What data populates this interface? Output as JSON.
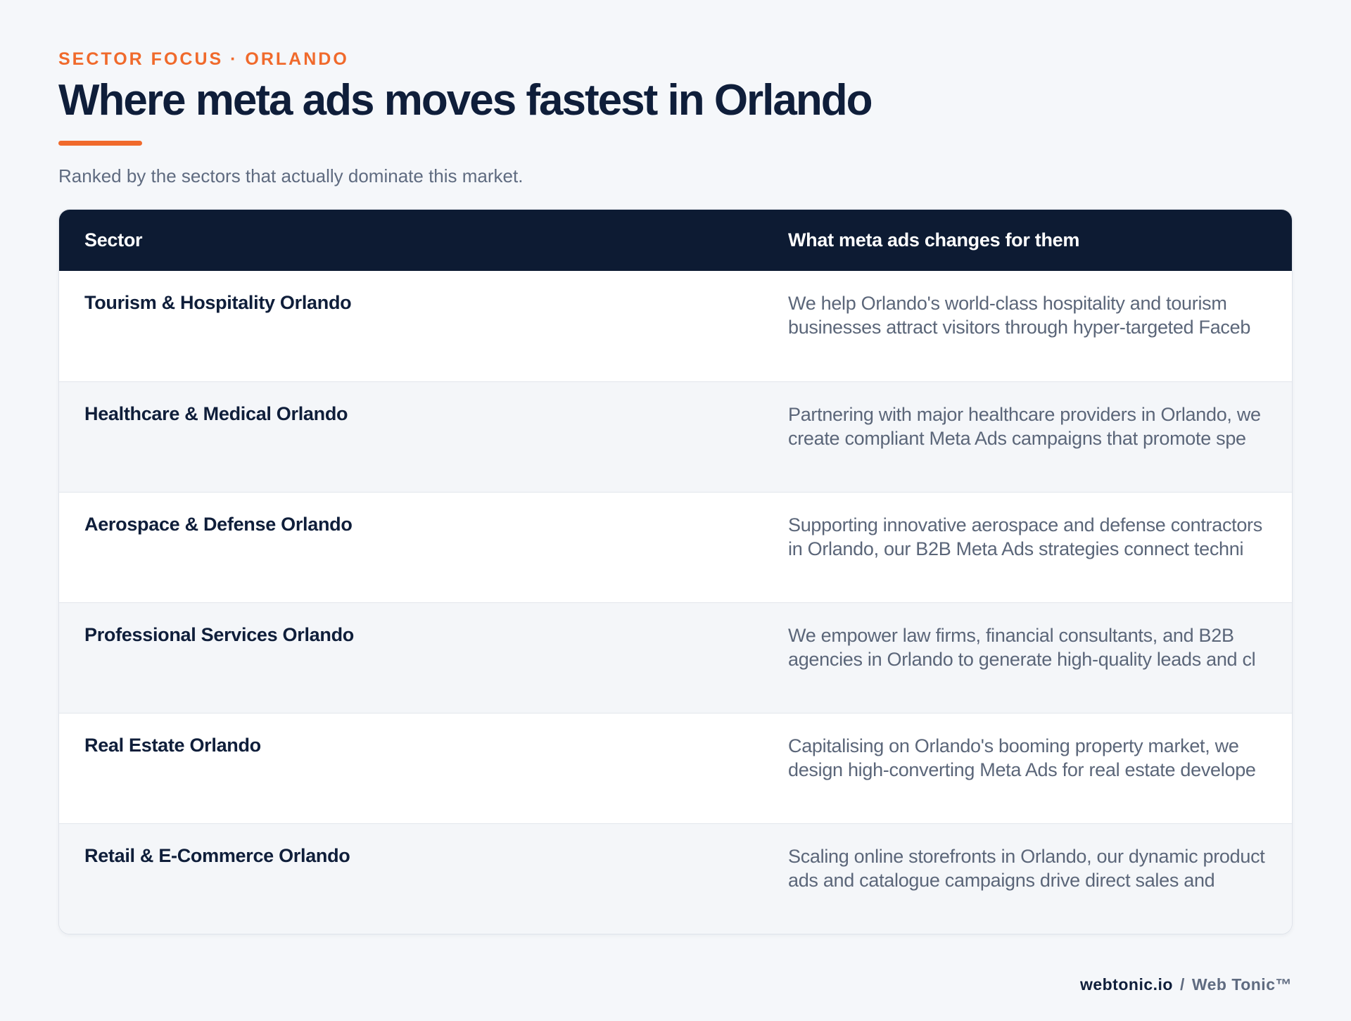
{
  "header": {
    "eyebrow": "SECTOR FOCUS · ORLANDO",
    "title": "Where meta ads moves fastest in Orlando",
    "subtitle": "Ranked by the sectors that actually dominate this market."
  },
  "table": {
    "columns": [
      "Sector",
      "What meta ads changes for them"
    ],
    "rows": [
      {
        "sector": "Tourism & Hospitality Orlando",
        "description": "We help Orlando's world-class hospitality and tourism businesses attract visitors through hyper-targeted Faceb"
      },
      {
        "sector": "Healthcare & Medical Orlando",
        "description": "Partnering with major healthcare providers in Orlando, we create compliant Meta Ads campaigns that promote spe"
      },
      {
        "sector": "Aerospace & Defense Orlando",
        "description": "Supporting innovative aerospace and defense contractors in Orlando, our B2B Meta Ads strategies connect techni"
      },
      {
        "sector": "Professional Services Orlando",
        "description": "We empower law firms, financial consultants, and B2B agencies in Orlando to generate high-quality leads and cl"
      },
      {
        "sector": "Real Estate Orlando",
        "description": "Capitalising on Orlando's booming property market, we design high-converting Meta Ads for real estate develope"
      },
      {
        "sector": "Retail & E-Commerce Orlando",
        "description": "Scaling online storefronts in Orlando, our dynamic product ads and catalogue campaigns drive direct sales and"
      }
    ]
  },
  "footer": {
    "domain": "webtonic.io",
    "separator": "/",
    "brand": "Web Tonic™"
  },
  "colors": {
    "accent": "#f06a2c",
    "navy": "#0d1b33",
    "muted": "#5f6b80",
    "background": "#f5f7fa"
  }
}
